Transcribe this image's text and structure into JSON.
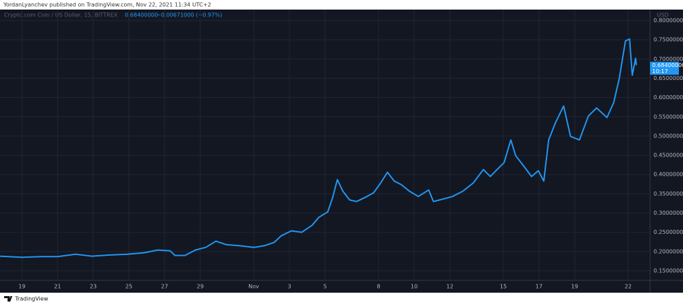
{
  "chart_data": {
    "type": "line",
    "published": "YordanLyanchev published on TradingView.com, Nov 22, 2021 11:34 UTC+2",
    "symbol": "Crypto.com Coin / US Dollar, 15, BITTREX",
    "last": "0.68400000",
    "change": "−0.00671000 (−0.97%)",
    "currency": "USD",
    "last_price": {
      "value": 0.684,
      "label": "0.68400000"
    },
    "countdown": "10:17",
    "footer": "TradingView",
    "color": "#2196f3",
    "grid": true,
    "x": [
      -1.23,
      0,
      1.08,
      2,
      3,
      3.92,
      4.92,
      5.92,
      6.85,
      7.62,
      8.31,
      8.58,
      9.15,
      9.73,
      10.31,
      10.88,
      11.46,
      12.23,
      13,
      13.58,
      14.15,
      14.54,
      15.12,
      15.69,
      16.27,
      16.65,
      17.15,
      17.42,
      17.69,
      18,
      18.38,
      18.77,
      19.35,
      19.73,
      20.12,
      20.5,
      20.88,
      21.27,
      21.73,
      22.23,
      22.81,
      23.08,
      23.58,
      24.15,
      24.73,
      25.31,
      25.88,
      26.27,
      26.65,
      27.04,
      27.42,
      27.69,
      28.19,
      28.58,
      28.96,
      29.27,
      29.54,
      29.92,
      30.38,
      30.77,
      31.27,
      31.77,
      32.23,
      32.81,
      33.19,
      33.5,
      33.85,
      34.08,
      34.23,
      34.42,
      34.46
    ],
    "values": [
      0.188,
      0.185,
      0.187,
      0.187,
      0.193,
      0.188,
      0.191,
      0.193,
      0.197,
      0.204,
      0.202,
      0.19,
      0.19,
      0.204,
      0.211,
      0.227,
      0.218,
      0.215,
      0.211,
      0.215,
      0.224,
      0.241,
      0.254,
      0.25,
      0.268,
      0.289,
      0.303,
      0.339,
      0.387,
      0.357,
      0.334,
      0.33,
      0.343,
      0.353,
      0.378,
      0.406,
      0.383,
      0.374,
      0.357,
      0.343,
      0.36,
      0.33,
      0.336,
      0.343,
      0.357,
      0.378,
      0.413,
      0.395,
      0.413,
      0.431,
      0.49,
      0.449,
      0.419,
      0.395,
      0.41,
      0.383,
      0.49,
      0.534,
      0.578,
      0.499,
      0.49,
      0.552,
      0.573,
      0.548,
      0.587,
      0.649,
      0.747,
      0.752,
      0.658,
      0.702,
      0.684
    ],
    "xlim": [
      -1.23,
      35.23
    ],
    "xticks": [
      {
        "value": 0,
        "label": "19"
      },
      {
        "value": 2,
        "label": "21"
      },
      {
        "value": 4,
        "label": "23"
      },
      {
        "value": 6,
        "label": "25"
      },
      {
        "value": 8,
        "label": "27"
      },
      {
        "value": 10,
        "label": "29"
      },
      {
        "value": 13,
        "label": "Nov"
      },
      {
        "value": 15,
        "label": "3"
      },
      {
        "value": 17,
        "label": "5"
      },
      {
        "value": 20,
        "label": "8"
      },
      {
        "value": 22,
        "label": "10"
      },
      {
        "value": 24,
        "label": "12"
      },
      {
        "value": 27,
        "label": "15"
      },
      {
        "value": 29,
        "label": "17"
      },
      {
        "value": 31,
        "label": "19"
      },
      {
        "value": 34,
        "label": "22"
      }
    ],
    "ylim": [
      0.1252,
      0.8284
    ],
    "yticks": [
      {
        "value": 0.15,
        "label": "0.15000000"
      },
      {
        "value": 0.2,
        "label": "0.20000000"
      },
      {
        "value": 0.25,
        "label": "0.25000000"
      },
      {
        "value": 0.3,
        "label": "0.30000000"
      },
      {
        "value": 0.35,
        "label": "0.35000000"
      },
      {
        "value": 0.4,
        "label": "0.40000000"
      },
      {
        "value": 0.45,
        "label": "0.45000000"
      },
      {
        "value": 0.5,
        "label": "0.50000000"
      },
      {
        "value": 0.55,
        "label": "0.55000000"
      },
      {
        "value": 0.6,
        "label": "0.60000000"
      },
      {
        "value": 0.65,
        "label": "0.65000000"
      },
      {
        "value": 0.7,
        "label": "0.70000000"
      },
      {
        "value": 0.75,
        "label": "0.75000000"
      },
      {
        "value": 0.8,
        "label": "0.80000000"
      }
    ]
  }
}
